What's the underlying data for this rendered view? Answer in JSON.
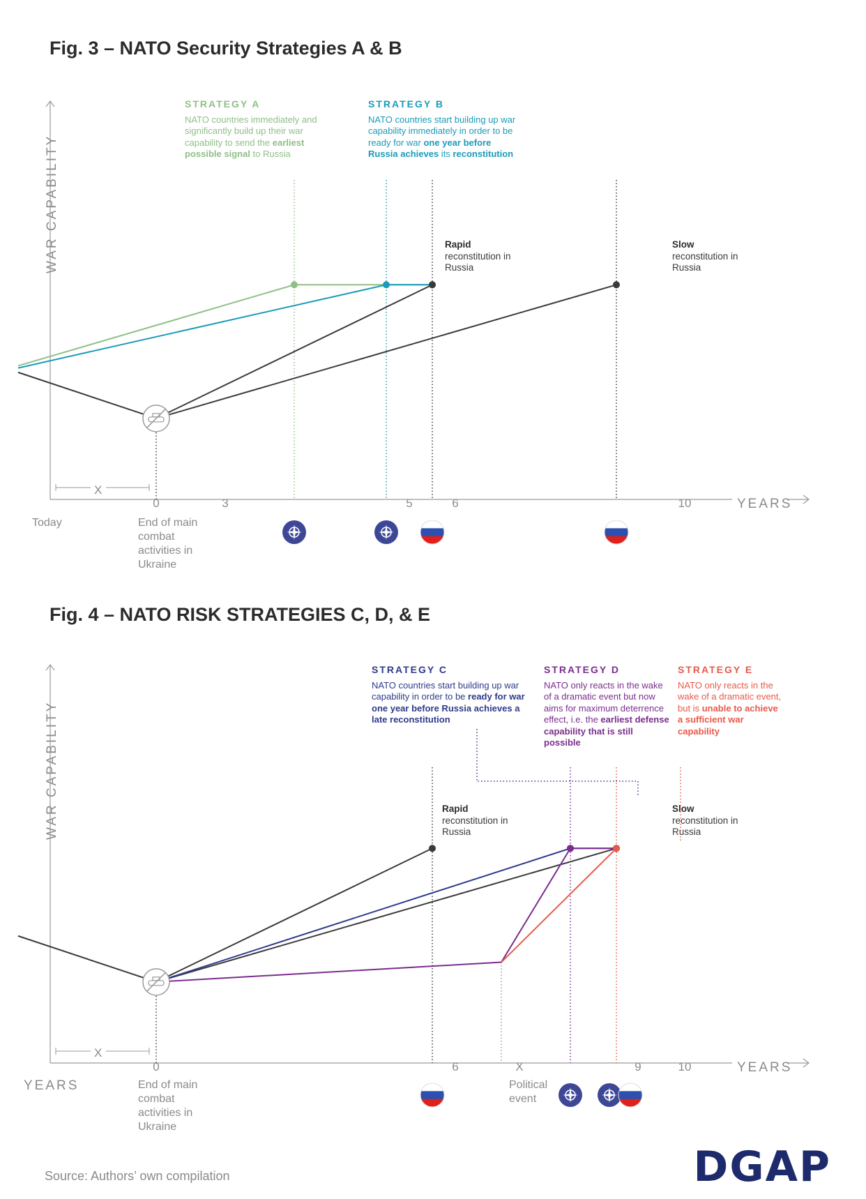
{
  "fig3": {
    "title": "Fig. 3 – NATO Security Strategies A & B",
    "ylabel": "WAR CAPABILITY",
    "xlabel": "YEARS",
    "today": "Today",
    "x_marker": "X",
    "end_combat": "End of main combat activities in Ukraine",
    "strategy_a": {
      "heading": "STRATEGY A",
      "text_pre": "NATO countries immediate­ly and significantly build up their war capability to send the ",
      "text_bold": "earliest possible signal",
      "text_post": " to Russia",
      "color": "#8fbf87"
    },
    "strategy_b": {
      "heading": "STRATEGY B",
      "text_pre": "NATO countries start building up war capability immediately in order to be ready for war ",
      "text_bold": "one year before Russia achie­ves",
      "text_mid": " its ",
      "text_bold2": "reconstitution",
      "color": "#1a9bb8"
    },
    "rapid": {
      "bold": "Rapid",
      "rest": "reconstitution in Russia"
    },
    "slow": {
      "bold": "Slow",
      "rest": "reconstitution in Russia"
    }
  },
  "fig4": {
    "title": "Fig. 4 – NATO RISK STRATEGIES C, D, & E",
    "ylabel": "WAR CAPABILITY",
    "xlabel": "YEARS",
    "xlabel_left": "YEARS",
    "x_marker": "X",
    "end_combat": "End of main combat activities in Ukraine",
    "political_event": "Political event",
    "strategy_c": {
      "heading": "STRATEGY C",
      "text_pre": "NATO countries start building up war capability in order to be ",
      "text_bold": "ready for war one year before Russia achieves a late reconstitution",
      "color": "#2e3a8c"
    },
    "strategy_d": {
      "heading": "STRATEGY D",
      "text_pre": "NATO only reacts in the wake of a dramatic event but now aims for maxi­mum deterrence effect, i.e. the ",
      "text_bold": "earliest defense capability that is still possible",
      "color": "#7b2d8e"
    },
    "strategy_e": {
      "heading": "STRATEGY E",
      "text_pre": "NATO only reacts in the wake of a dramatic event, but is ",
      "text_bold": "unable to achieve a sufficient war capability",
      "color": "#e8594a"
    },
    "rapid": {
      "bold": "Rapid",
      "rest": "reconstitution in Russia"
    },
    "slow": {
      "bold": "Slow",
      "rest": "reconstitution in Russia"
    }
  },
  "source": "Source: Authors’ own compilation",
  "logo": "DGAP",
  "colors": {
    "russia": "#3a3a3a",
    "nato_badge": "#3d4796",
    "flag_blue": "#2c4fb0",
    "flag_red": "#e0201b",
    "axis": "#9a9a9a"
  },
  "icons": [
    "nato-compass-icon",
    "russia-flag-icon",
    "tank-crossed-icon"
  ],
  "chart_data": [
    {
      "type": "line",
      "title": "Fig. 3 – NATO Security Strategies A & B",
      "xlabel": "YEARS",
      "ylabel": "WAR CAPABILITY",
      "x_ticks": [
        "0",
        "3",
        "5",
        "6",
        "10"
      ],
      "xlim": [
        -3,
        14
      ],
      "ylim": [
        0,
        1
      ],
      "grid": false,
      "series": [
        {
          "name": "STRATEGY A",
          "color": "#8fbf87",
          "x": [
            -3,
            3,
            6
          ],
          "y": [
            0.61,
            0.98,
            0.98
          ]
        },
        {
          "name": "STRATEGY B",
          "color": "#1a9bb8",
          "x": [
            -3,
            5,
            6
          ],
          "y": [
            0.6,
            0.98,
            0.98
          ]
        },
        {
          "name": "Rapid reconstitution in Russia",
          "color": "#3a3a3a",
          "x": [
            -3,
            0,
            6
          ],
          "y": [
            0.58,
            0.37,
            0.98
          ]
        },
        {
          "name": "Slow reconstitution in Russia",
          "color": "#3a3a3a",
          "x": [
            0,
            10
          ],
          "y": [
            0.37,
            0.98
          ]
        }
      ],
      "guides": [
        {
          "x": 0,
          "color": "#3a3a3a"
        },
        {
          "x": 3,
          "color": "#8fbf87"
        },
        {
          "x": 5,
          "color": "#1a9bb8"
        },
        {
          "x": 6,
          "color": "#3a3a3a"
        },
        {
          "x": 10,
          "color": "#3a3a3a"
        }
      ],
      "icons_below_axis": [
        {
          "x": 3,
          "icon": "nato-compass-icon"
        },
        {
          "x": 5,
          "icon": "nato-compass-icon"
        },
        {
          "x": 6,
          "icon": "russia-flag-icon"
        },
        {
          "x": 10,
          "icon": "russia-flag-icon"
        }
      ]
    },
    {
      "type": "line",
      "title": "Fig. 4 – NATO RISK STRATEGIES C, D, & E",
      "xlabel": "YEARS",
      "ylabel": "WAR CAPABILITY",
      "x_ticks": [
        "0",
        "6",
        "X",
        "9",
        "10"
      ],
      "xlim": [
        -3,
        14
      ],
      "ylim": [
        0,
        1
      ],
      "grid": false,
      "series": [
        {
          "name": "Rapid reconstitution in Russia",
          "color": "#3a3a3a",
          "x": [
            -3,
            0,
            6
          ],
          "y": [
            0.58,
            0.37,
            0.98
          ]
        },
        {
          "name": "Slow reconstitution in Russia",
          "color": "#3a3a3a",
          "x": [
            0,
            10
          ],
          "y": [
            0.37,
            0.98
          ]
        },
        {
          "name": "STRATEGY C",
          "color": "#2e3a8c",
          "x": [
            0,
            9,
            10
          ],
          "y": [
            0.37,
            0.98,
            0.98
          ]
        },
        {
          "name": "STRATEGY D",
          "color": "#7b2d8e",
          "x": [
            0,
            7.5,
            9,
            10
          ],
          "y": [
            0.37,
            0.46,
            0.98,
            0.98
          ]
        },
        {
          "name": "STRATEGY E",
          "color": "#e8594a",
          "x": [
            7.5,
            10
          ],
          "y": [
            0.46,
            0.98
          ]
        }
      ],
      "guides": [
        {
          "x": 0,
          "color": "#3a3a3a"
        },
        {
          "x": 6,
          "color": "#3a3a3a"
        },
        {
          "x": 7.5,
          "color": "#9a9a9a"
        },
        {
          "x": 9,
          "color": "#7b2d8e"
        },
        {
          "x": 10,
          "color": "#e8594a"
        }
      ],
      "icons_below_axis": [
        {
          "x": 6,
          "icon": "russia-flag-icon"
        },
        {
          "x": 9,
          "icon": "nato-compass-icon"
        },
        {
          "x": 10,
          "icon": "nato-compass-icon"
        },
        {
          "x": 10,
          "icon": "russia-flag-icon"
        }
      ]
    }
  ]
}
